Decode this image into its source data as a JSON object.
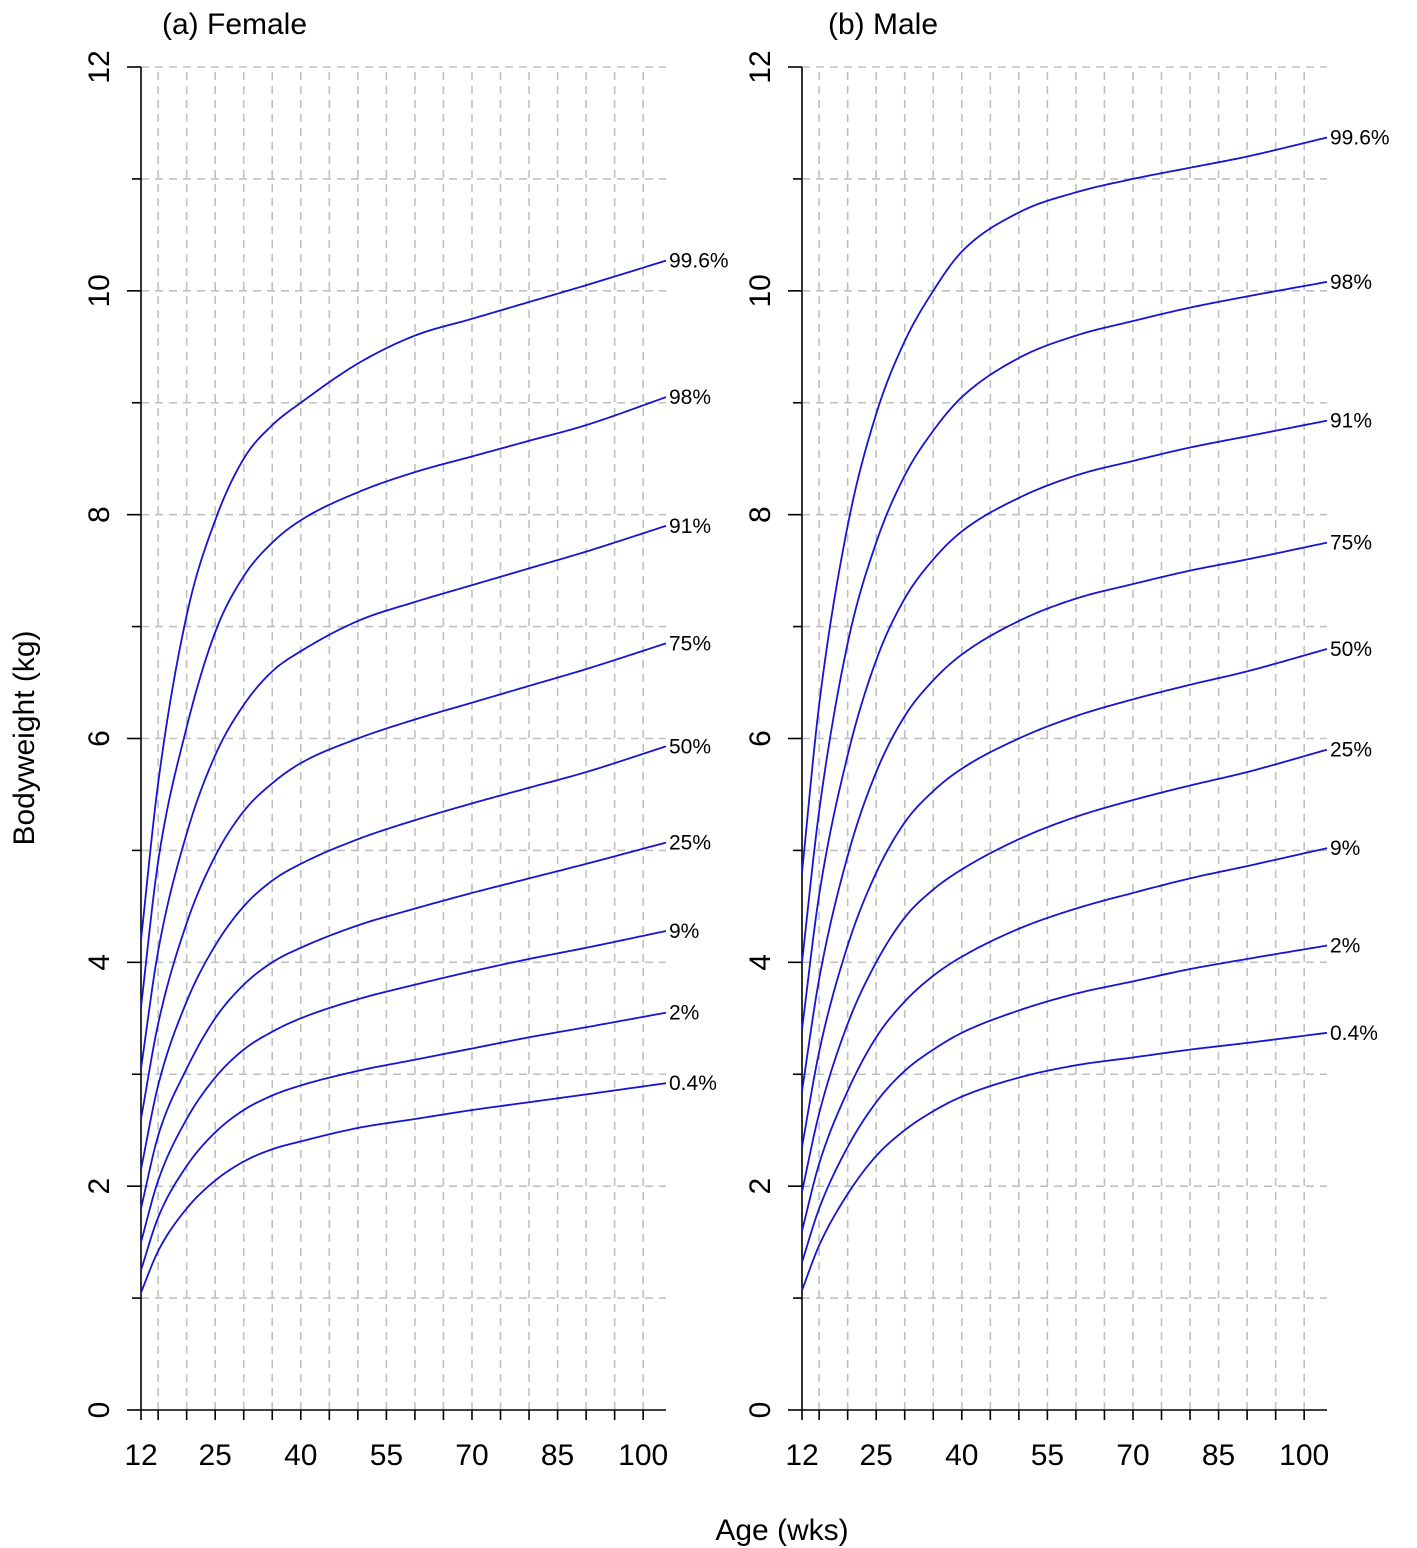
{
  "xlabel": "Age (wks)",
  "ylabel": "Bodyweight (kg)",
  "colors": {
    "curve": "#1414d6",
    "grid": "#c0c0c0",
    "axis": "#000000"
  },
  "chart_data": [
    {
      "type": "line",
      "title": "(a) Female",
      "xlim": [
        12,
        104
      ],
      "ylim": [
        0,
        12
      ],
      "xticks": [
        12,
        25,
        40,
        55,
        70,
        85,
        100
      ],
      "xtick_labels": [
        "12",
        "25",
        "40",
        "55",
        "70",
        "85",
        "100"
      ],
      "yticks": [
        0,
        2,
        4,
        6,
        8,
        10,
        12
      ],
      "ytick_labels": [
        "0",
        "2",
        "4",
        "6",
        "8",
        "10",
        "12"
      ],
      "grid": true,
      "x": [
        12,
        15,
        20,
        25,
        30,
        35,
        40,
        50,
        60,
        70,
        80,
        90,
        104
      ],
      "series": [
        {
          "name": "99.6%",
          "values": [
            4.2,
            5.6,
            7.1,
            7.95,
            8.5,
            8.8,
            9.0,
            9.35,
            9.6,
            9.75,
            9.9,
            10.05,
            10.27
          ]
        },
        {
          "name": "98%",
          "values": [
            3.6,
            4.9,
            6.1,
            6.95,
            7.45,
            7.75,
            7.95,
            8.2,
            8.38,
            8.52,
            8.66,
            8.8,
            9.05
          ]
        },
        {
          "name": "91%",
          "values": [
            3.05,
            4.1,
            5.15,
            5.85,
            6.3,
            6.6,
            6.78,
            7.05,
            7.22,
            7.37,
            7.52,
            7.67,
            7.9
          ]
        },
        {
          "name": "75%",
          "values": [
            2.6,
            3.45,
            4.35,
            4.95,
            5.35,
            5.6,
            5.78,
            6.0,
            6.17,
            6.32,
            6.47,
            6.62,
            6.85
          ]
        },
        {
          "name": "50%",
          "values": [
            2.15,
            2.9,
            3.65,
            4.15,
            4.5,
            4.73,
            4.88,
            5.1,
            5.27,
            5.42,
            5.56,
            5.7,
            5.93
          ]
        },
        {
          "name": "25%",
          "values": [
            1.8,
            2.45,
            3.05,
            3.5,
            3.8,
            4.0,
            4.13,
            4.33,
            4.48,
            4.62,
            4.75,
            4.88,
            5.07
          ]
        },
        {
          "name": "9%",
          "values": [
            1.5,
            2.05,
            2.6,
            2.97,
            3.22,
            3.38,
            3.5,
            3.67,
            3.8,
            3.92,
            4.03,
            4.13,
            4.28
          ]
        },
        {
          "name": "2%",
          "values": [
            1.25,
            1.72,
            2.18,
            2.48,
            2.68,
            2.81,
            2.9,
            3.03,
            3.13,
            3.23,
            3.33,
            3.42,
            3.55
          ]
        },
        {
          "name": "0.4%",
          "values": [
            1.05,
            1.42,
            1.8,
            2.05,
            2.22,
            2.33,
            2.4,
            2.52,
            2.6,
            2.68,
            2.75,
            2.82,
            2.92
          ]
        }
      ]
    },
    {
      "type": "line",
      "title": "(b) Male",
      "xlim": [
        12,
        104
      ],
      "ylim": [
        0,
        12
      ],
      "xticks": [
        12,
        25,
        40,
        55,
        70,
        85,
        100
      ],
      "xtick_labels": [
        "12",
        "25",
        "40",
        "55",
        "70",
        "85",
        "100"
      ],
      "yticks": [
        0,
        2,
        4,
        6,
        8,
        10,
        12
      ],
      "ytick_labels": [
        "0",
        "2",
        "4",
        "6",
        "8",
        "10",
        "12"
      ],
      "grid": true,
      "x": [
        12,
        15,
        20,
        25,
        30,
        35,
        40,
        50,
        60,
        70,
        80,
        90,
        104
      ],
      "series": [
        {
          "name": "99.6%",
          "values": [
            4.8,
            6.3,
            7.9,
            8.9,
            9.55,
            10.0,
            10.35,
            10.7,
            10.88,
            11.0,
            11.1,
            11.2,
            11.37
          ]
        },
        {
          "name": "98%",
          "values": [
            4.0,
            5.35,
            6.85,
            7.75,
            8.35,
            8.75,
            9.05,
            9.4,
            9.6,
            9.73,
            9.85,
            9.95,
            10.08
          ]
        },
        {
          "name": "91%",
          "values": [
            3.4,
            4.6,
            5.85,
            6.7,
            7.25,
            7.6,
            7.85,
            8.15,
            8.35,
            8.48,
            8.6,
            8.7,
            8.84
          ]
        },
        {
          "name": "75%",
          "values": [
            2.85,
            3.85,
            4.95,
            5.7,
            6.2,
            6.52,
            6.75,
            7.05,
            7.25,
            7.38,
            7.5,
            7.6,
            7.75
          ]
        },
        {
          "name": "50%",
          "values": [
            2.35,
            3.2,
            4.15,
            4.8,
            5.25,
            5.53,
            5.73,
            6.0,
            6.2,
            6.35,
            6.48,
            6.6,
            6.8
          ]
        },
        {
          "name": "25%",
          "values": [
            1.95,
            2.65,
            3.45,
            4.0,
            4.4,
            4.65,
            4.83,
            5.1,
            5.3,
            5.45,
            5.58,
            5.7,
            5.9
          ]
        },
        {
          "name": "9%",
          "values": [
            1.6,
            2.2,
            2.85,
            3.33,
            3.65,
            3.88,
            4.05,
            4.3,
            4.48,
            4.62,
            4.75,
            4.86,
            5.02
          ]
        },
        {
          "name": "2%",
          "values": [
            1.32,
            1.8,
            2.35,
            2.75,
            3.03,
            3.22,
            3.37,
            3.57,
            3.72,
            3.83,
            3.94,
            4.03,
            4.15
          ]
        },
        {
          "name": "0.4%",
          "values": [
            1.07,
            1.47,
            1.93,
            2.27,
            2.5,
            2.67,
            2.8,
            2.97,
            3.08,
            3.15,
            3.22,
            3.28,
            3.37
          ]
        }
      ]
    }
  ]
}
